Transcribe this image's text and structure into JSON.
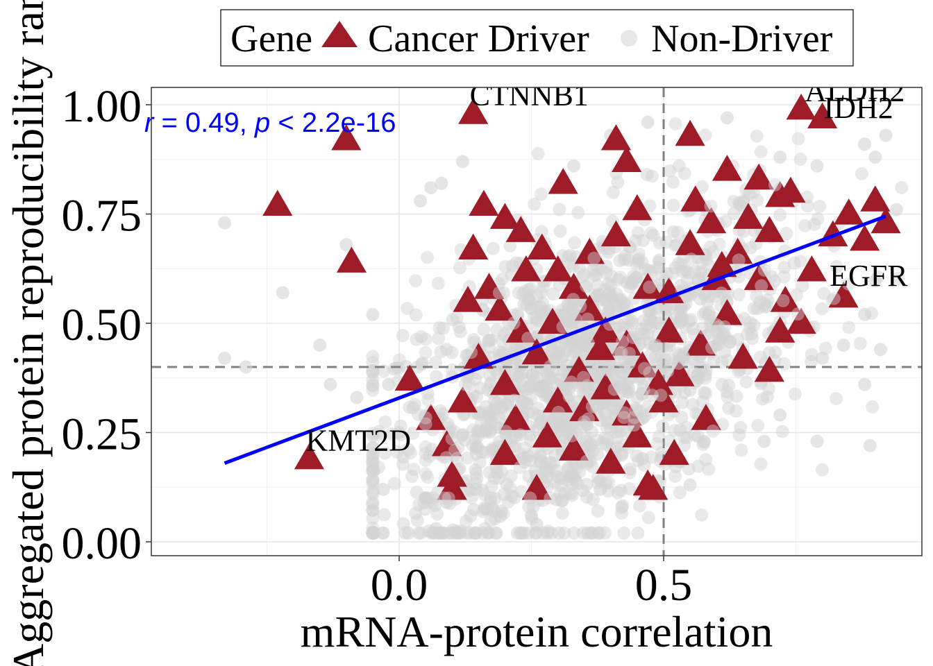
{
  "chart_data": {
    "type": "scatter",
    "title": "",
    "xlabel": "mRNA-protein correlation",
    "ylabel": "Aggregated protein reproducibility rank",
    "xlim": [
      -0.47,
      1.0
    ],
    "ylim": [
      -0.03,
      1.04
    ],
    "x_ticks": [
      "0.0",
      "0.5"
    ],
    "y_ticks": [
      "0.00",
      "0.25",
      "0.50",
      "0.75",
      "1.00"
    ],
    "grid": true,
    "legend": {
      "position": "top",
      "title": "Gene",
      "entries": [
        "Cancer Driver",
        "Non-Driver"
      ]
    },
    "reference_lines": {
      "x": 0.5,
      "y": 0.4
    },
    "regression": {
      "x": [
        -0.33,
        0.92
      ],
      "y": [
        0.18,
        0.745
      ],
      "color": "#0000ff"
    },
    "stat_label": {
      "prefix": "r",
      "text1": " = 0.49, ",
      "p": "p",
      "text2": " < 2.2e-16",
      "color": "#0000ff"
    },
    "series": [
      {
        "name": "Non-Driver",
        "marker": "circle",
        "color": "#d3d3d3",
        "n_background_points": 1500,
        "points": [
          [
            -0.33,
            0.73
          ],
          [
            -0.29,
            0.4
          ],
          [
            -0.33,
            0.42
          ],
          [
            -0.22,
            0.57
          ],
          [
            -0.15,
            0.45
          ],
          [
            -0.13,
            0.36
          ],
          [
            -0.1,
            0.68
          ],
          [
            -0.05,
            0.52
          ],
          [
            -0.02,
            0.36
          ],
          [
            -0.03,
            0.12
          ],
          [
            0.0,
            0.25
          ],
          [
            -0.08,
            0.33
          ],
          [
            0.04,
            0.78
          ],
          [
            0.06,
            0.81
          ],
          [
            0.08,
            0.82
          ],
          [
            0.12,
            0.87
          ],
          [
            0.09,
            0.09
          ],
          [
            0.07,
            0.03
          ],
          [
            0.13,
            0.12
          ],
          [
            0.18,
            0.07
          ],
          [
            0.25,
            0.06
          ],
          [
            0.26,
            0.04
          ],
          [
            0.33,
            0.86
          ],
          [
            0.4,
            0.93
          ],
          [
            0.47,
            0.96
          ],
          [
            0.62,
            0.97
          ],
          [
            0.72,
            0.88
          ],
          [
            0.79,
            0.86
          ],
          [
            0.88,
            0.91
          ],
          [
            0.9,
            0.88
          ],
          [
            0.92,
            0.93
          ],
          [
            0.94,
            0.76
          ],
          [
            0.88,
            0.52
          ],
          [
            0.91,
            0.44
          ],
          [
            0.84,
            0.45
          ],
          [
            0.8,
            0.42
          ],
          [
            0.88,
            0.36
          ],
          [
            0.72,
            0.29
          ],
          [
            0.79,
            0.23
          ],
          [
            0.89,
            0.22
          ],
          [
            0.69,
            0.23
          ],
          [
            0.58,
            0.27
          ],
          [
            0.46,
            0.19
          ],
          [
            0.55,
            0.13
          ],
          [
            0.38,
            0.12
          ],
          [
            0.32,
            0.17
          ]
        ]
      },
      {
        "name": "Cancer Driver",
        "marker": "triangle",
        "color": "#9e1b28",
        "points": [
          [
            -0.23,
            0.77
          ],
          [
            -0.1,
            0.92
          ],
          [
            -0.09,
            0.64
          ],
          [
            0.14,
            0.98
          ],
          [
            -0.17,
            0.19
          ],
          [
            0.47,
            0.13
          ],
          [
            0.48,
            0.12
          ],
          [
            0.52,
            0.2
          ],
          [
            0.58,
            0.28
          ],
          [
            0.7,
            0.39
          ],
          [
            0.76,
            0.99
          ],
          [
            0.8,
            0.97
          ],
          [
            0.84,
            0.56
          ],
          [
            0.92,
            0.73
          ],
          [
            0.9,
            0.78
          ],
          [
            0.78,
            0.62
          ],
          [
            0.82,
            0.7
          ],
          [
            0.62,
            0.85
          ],
          [
            0.68,
            0.83
          ],
          [
            0.72,
            0.79
          ],
          [
            0.74,
            0.8
          ],
          [
            0.55,
            0.93
          ],
          [
            0.41,
            0.92
          ],
          [
            0.43,
            0.87
          ],
          [
            0.02,
            0.37
          ],
          [
            0.06,
            0.28
          ],
          [
            0.09,
            0.22
          ],
          [
            0.1,
            0.15
          ],
          [
            0.1,
            0.12
          ],
          [
            0.13,
            0.55
          ],
          [
            0.14,
            0.67
          ],
          [
            0.16,
            0.77
          ],
          [
            0.2,
            0.74
          ],
          [
            0.23,
            0.71
          ],
          [
            0.27,
            0.67
          ],
          [
            0.3,
            0.62
          ],
          [
            0.33,
            0.58
          ],
          [
            0.36,
            0.53
          ],
          [
            0.39,
            0.48
          ],
          [
            0.43,
            0.45
          ],
          [
            0.46,
            0.4
          ],
          [
            0.49,
            0.36
          ],
          [
            0.23,
            0.48
          ],
          [
            0.26,
            0.43
          ],
          [
            0.3,
            0.32
          ],
          [
            0.35,
            0.3
          ],
          [
            0.39,
            0.35
          ],
          [
            0.43,
            0.29
          ],
          [
            0.51,
            0.57
          ],
          [
            0.55,
            0.68
          ],
          [
            0.59,
            0.73
          ],
          [
            0.64,
            0.66
          ],
          [
            0.68,
            0.6
          ],
          [
            0.73,
            0.55
          ],
          [
            0.76,
            0.5
          ],
          [
            0.19,
            0.53
          ],
          [
            0.15,
            0.42
          ],
          [
            0.2,
            0.36
          ],
          [
            0.28,
            0.24
          ],
          [
            0.33,
            0.21
          ],
          [
            0.4,
            0.18
          ],
          [
            0.26,
            0.12
          ],
          [
            0.47,
            0.58
          ],
          [
            0.51,
            0.48
          ],
          [
            0.57,
            0.45
          ],
          [
            0.62,
            0.52
          ],
          [
            0.66,
            0.74
          ],
          [
            0.7,
            0.71
          ],
          [
            0.85,
            0.75
          ],
          [
            0.88,
            0.69
          ],
          [
            0.45,
            0.76
          ],
          [
            0.41,
            0.7
          ],
          [
            0.36,
            0.66
          ],
          [
            0.31,
            0.82
          ],
          [
            0.24,
            0.62
          ],
          [
            0.17,
            0.58
          ],
          [
            0.12,
            0.32
          ],
          [
            0.22,
            0.28
          ],
          [
            0.5,
            0.32
          ],
          [
            0.45,
            0.24
          ],
          [
            0.53,
            0.38
          ],
          [
            0.6,
            0.6
          ],
          [
            0.65,
            0.42
          ],
          [
            0.72,
            0.48
          ],
          [
            0.56,
            0.78
          ],
          [
            0.61,
            0.63
          ],
          [
            0.38,
            0.44
          ],
          [
            0.29,
            0.5
          ],
          [
            0.34,
            0.39
          ],
          [
            0.2,
            0.2
          ]
        ]
      }
    ],
    "annotations": [
      {
        "label": "CTNNB1",
        "x": 0.14,
        "y": 0.98
      },
      {
        "label": "ALDH2",
        "x": 0.76,
        "y": 0.99
      },
      {
        "label": "IDH2",
        "x": 0.8,
        "y": 0.97
      },
      {
        "label": "EGFR",
        "x": 0.84,
        "y": 0.56
      },
      {
        "label": "KMT2D",
        "x": -0.17,
        "y": 0.19
      }
    ]
  }
}
